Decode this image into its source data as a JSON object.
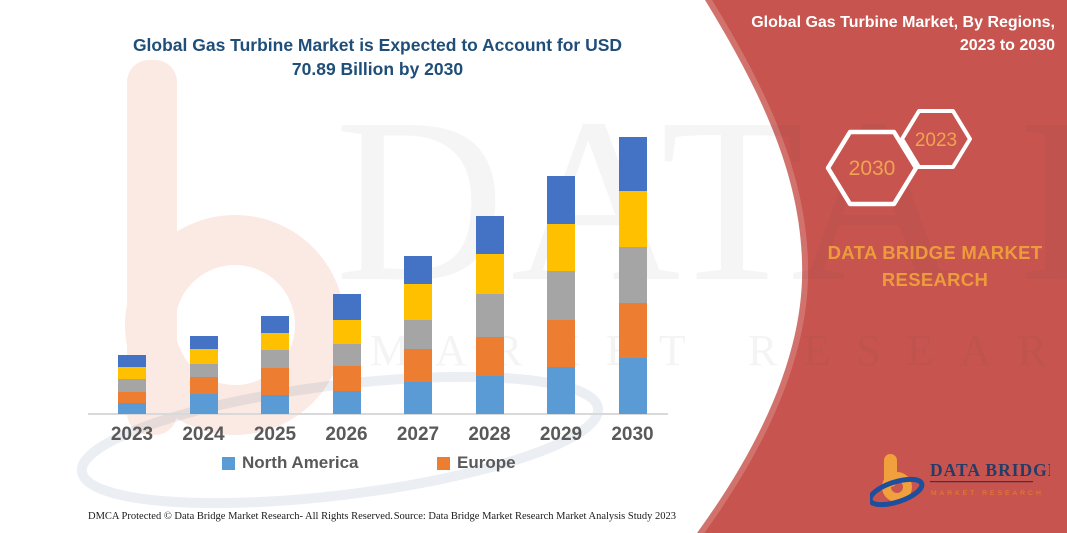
{
  "page": {
    "background": "#ffffff"
  },
  "chart_panel": {
    "title_line1": "Global Gas Turbine Market is Expected to Account for USD",
    "title_line2": "70.89 Billion by 2030",
    "footer_left": "DMCA Protected © Data Bridge Market Research-  All Rights Reserved.",
    "footer_right": "Source: Data Bridge Market Research  Market Analysis Study 2023"
  },
  "chart_data": {
    "type": "bar",
    "stacked": true,
    "title": "Global Gas Turbine Market is Expected to Account for USD 70.89 Billion by 2030",
    "unit": "USD Billion (estimated; 2030 total anchored to 70.89 from title)",
    "categories": [
      "2023",
      "2024",
      "2025",
      "2026",
      "2027",
      "2028",
      "2029",
      "2030"
    ],
    "series": [
      {
        "name": "North America",
        "color": "#5B9BD5",
        "values": [
          2.7,
          5.1,
          4.9,
          5.8,
          8.1,
          9.8,
          12.0,
          14.3
        ]
      },
      {
        "name": "Europe",
        "color": "#ED7D31",
        "values": [
          3.0,
          4.3,
          7.0,
          6.4,
          8.5,
          10.0,
          12.1,
          14.2
        ]
      },
      {
        "name": "unlabeled (gray)",
        "color": "#A5A5A5",
        "values": [
          3.3,
          3.4,
          4.4,
          5.7,
          7.5,
          10.8,
          12.5,
          14.3
        ]
      },
      {
        "name": "unlabeled (yellow)",
        "color": "#FFC000",
        "values": [
          3.1,
          3.8,
          4.5,
          6.2,
          9.1,
          10.4,
          12.1,
          14.2
        ]
      },
      {
        "name": "unlabeled (blue)",
        "color": "#4472C4",
        "values": [
          3.0,
          3.4,
          4.3,
          6.6,
          7.2,
          9.6,
          12.1,
          13.9
        ]
      }
    ],
    "totals": [
      15.1,
      20.0,
      25.1,
      30.7,
      40.4,
      50.6,
      60.8,
      70.89
    ],
    "legend": [
      {
        "label": "North America",
        "color": "#5B9BD5"
      },
      {
        "label": "Europe",
        "color": "#ED7D31"
      }
    ],
    "axes": {
      "y_axis_shown": false,
      "gridlines": false,
      "x_labels_shown": true
    },
    "legend_position": "bottom"
  },
  "side_panel": {
    "background": "#C7544E",
    "heading_line1": "Global Gas Turbine Market, By Regions,",
    "heading_line2": "2023 to 2030",
    "hexagons": [
      {
        "label": "2030"
      },
      {
        "label": "2023"
      }
    ],
    "hexagon_text_color": "#F0A351",
    "brand_line1": "DATA BRIDGE MARKET",
    "brand_line2": "RESEARCH",
    "logo": {
      "name": "DATA BRIDGE",
      "subtext": "MARKET RESEARCH"
    }
  },
  "watermark": {
    "text_large": "DATA BRIDGE",
    "text_small": "MARKET RESEARCH"
  }
}
